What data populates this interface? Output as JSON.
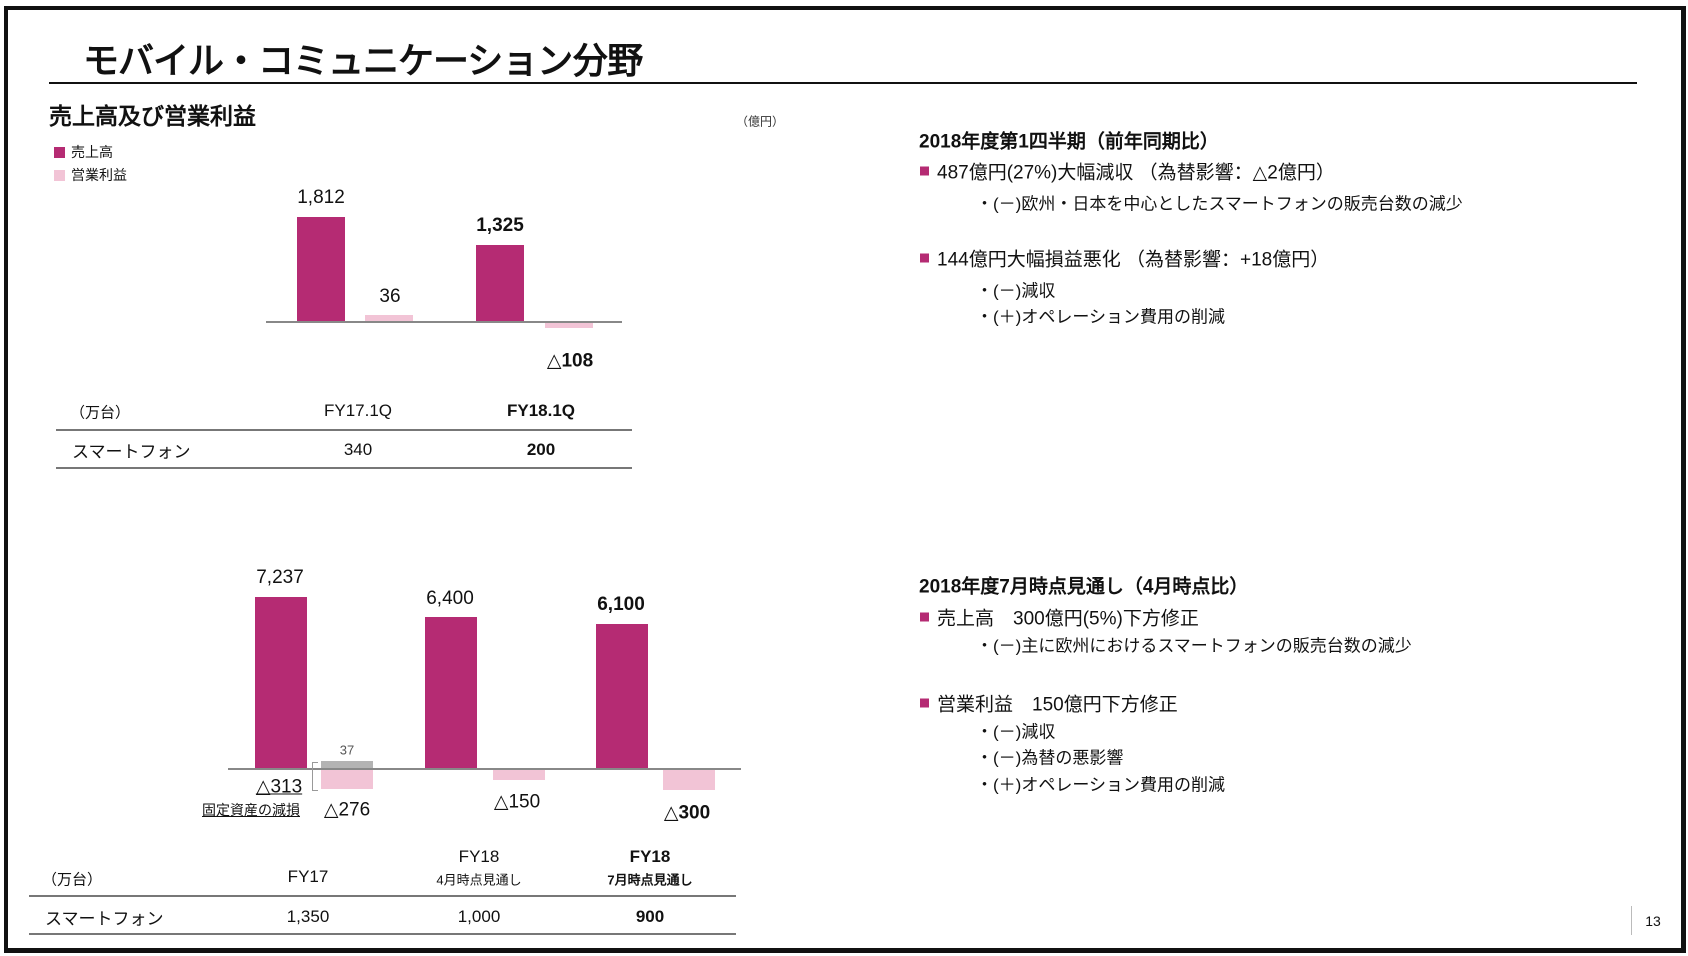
{
  "page": {
    "title": "モバイル・コミュニケーション分野",
    "subtitle": "売上高及び営業利益",
    "unit_yen": "（億円）",
    "page_number": "13"
  },
  "legend": [
    {
      "label": "売上高",
      "color": "#b52b73"
    },
    {
      "label": "営業利益",
      "color": "#f2c4d6"
    }
  ],
  "chart_data": [
    {
      "type": "bar",
      "categories": [
        "FY17.1Q",
        "FY18.1Q"
      ],
      "series": [
        {
          "name": "売上高",
          "values": [
            1812,
            1325
          ],
          "labels": [
            "1,812",
            "1,325"
          ]
        },
        {
          "name": "営業利益",
          "values": [
            36,
            -108
          ],
          "labels": [
            "36",
            "△108"
          ]
        }
      ]
    },
    {
      "type": "bar",
      "categories": [
        "FY17",
        "FY18 4月時点見通し",
        "FY18 7月時点見通し"
      ],
      "series": [
        {
          "name": "売上高",
          "values": [
            7237,
            6400,
            6100
          ],
          "labels": [
            "7,237",
            "6,400",
            "6,100"
          ]
        },
        {
          "name": "営業利益",
          "values": [
            -276,
            -150,
            -300
          ],
          "labels": [
            "△276",
            "△150",
            "△300"
          ]
        }
      ],
      "annotations": {
        "fy17_excluding_impairment": {
          "value": 37,
          "label": "37",
          "color": "#b3b3b3"
        },
        "impairment": {
          "value": -313,
          "label": "△313",
          "note": "固定資産の減損"
        }
      }
    }
  ],
  "table1": {
    "unit": "（万台）",
    "headers": [
      "FY17.1Q",
      "FY18.1Q"
    ],
    "row_label": "スマートフォン",
    "values": [
      "340",
      "200"
    ]
  },
  "table2": {
    "unit": "（万台）",
    "headers": [
      {
        "main": "FY17",
        "sub": ""
      },
      {
        "main": "FY18",
        "sub": "4月時点見通し"
      },
      {
        "main": "FY18",
        "sub": "7月時点見通し"
      }
    ],
    "row_label": "スマートフォン",
    "values": [
      "1,350",
      "1,000",
      "900"
    ]
  },
  "section1": {
    "heading": "2018年度第1四半期（前年同期比）",
    "bullets": [
      {
        "text": "487億円(27%)大幅減収 （為替影響：△2億円）",
        "subs": [
          "・(－)欧州・日本を中心としたスマートフォンの販売台数の減少"
        ]
      },
      {
        "text": "144億円大幅損益悪化 （為替影響：+18億円）",
        "subs": [
          "・(－)減収",
          "・(＋)オペレーション費用の削減"
        ]
      }
    ]
  },
  "section2": {
    "heading": "2018年度7月時点見通し（4月時点比）",
    "bullets": [
      {
        "text": "売上高　300億円(5%)下方修正",
        "subs": [
          "・(－)主に欧州におけるスマートフォンの販売台数の減少"
        ]
      },
      {
        "text": "営業利益　150億円下方修正",
        "subs": [
          "・(－)減収",
          "・(－)為替の悪影響",
          "・(＋)オペレーション費用の削減"
        ]
      }
    ]
  },
  "colors": {
    "sales": "#b52b73",
    "profit": "#f2c4d6",
    "gray": "#b3b3b3"
  }
}
